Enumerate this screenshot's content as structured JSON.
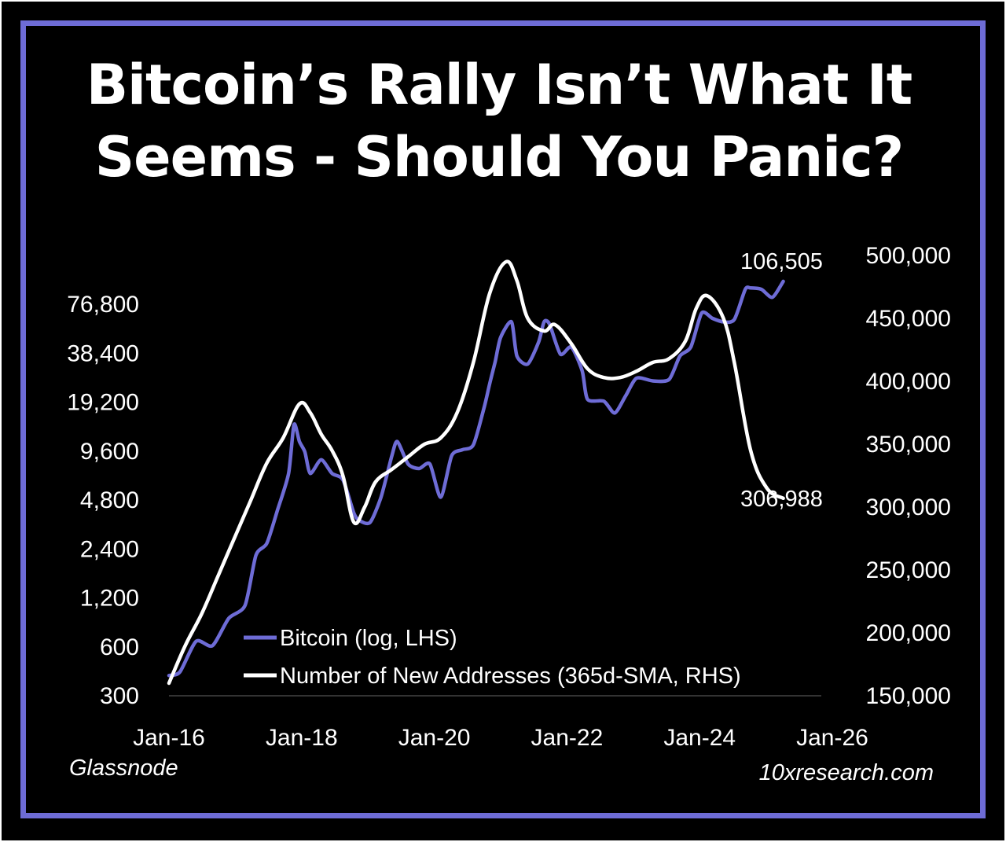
{
  "title": {
    "line1": "Bitcoin’s Rally Isn’t What It",
    "line2": "Seems - Should You Panic?"
  },
  "colors": {
    "background": "#000000",
    "border": "#6e6cd6",
    "bitcoin_series": "#6e6cd6",
    "addresses_series": "#ffffff",
    "text": "#ffffff"
  },
  "source_left": "Glassnode",
  "source_right": "10xresearch.com",
  "chart_data": {
    "type": "line",
    "title": "Bitcoin’s Rally Isn’t What It Seems - Should You Panic?",
    "x_ticks": [
      "Jan-16",
      "Jan-18",
      "Jan-20",
      "Jan-22",
      "Jan-24",
      "Jan-26"
    ],
    "xlim": [
      "2016-01",
      "2026-01"
    ],
    "y_left": {
      "label": "",
      "scale": "log",
      "ticks": [
        "300",
        "600",
        "1,200",
        "2,400",
        "4,800",
        "9,600",
        "19,200",
        "38,400",
        "76,800"
      ],
      "ylim": [
        300,
        153600
      ]
    },
    "y_right": {
      "label": "",
      "scale": "linear",
      "ticks": [
        "150,000",
        "200,000",
        "250,000",
        "300,000",
        "350,000",
        "400,000",
        "450,000",
        "500,000"
      ],
      "ylim": [
        150000,
        500000
      ]
    },
    "legend": {
      "position": "bottom-center",
      "entries": [
        "Bitcoin (log, LHS)",
        "Number of New Addresses (365d-SMA, RHS)"
      ]
    },
    "annotations": {
      "bitcoin_last": "106,505",
      "addresses_last": "306,988"
    },
    "series": [
      {
        "name": "Bitcoin (log, LHS)",
        "axis": "left",
        "x": [
          "2016-01",
          "2016-03",
          "2016-06",
          "2016-09",
          "2016-12",
          "2017-03",
          "2017-05",
          "2017-07",
          "2017-09",
          "2017-11",
          "2017-12",
          "2018-01",
          "2018-02",
          "2018-03",
          "2018-05",
          "2018-07",
          "2018-09",
          "2018-11",
          "2018-12",
          "2019-02",
          "2019-04",
          "2019-06",
          "2019-07",
          "2019-09",
          "2019-11",
          "2020-01",
          "2020-03",
          "2020-05",
          "2020-07",
          "2020-09",
          "2020-11",
          "2020-12",
          "2021-01",
          "2021-02",
          "2021-04",
          "2021-05",
          "2021-07",
          "2021-09",
          "2021-10",
          "2021-11",
          "2022-01",
          "2022-03",
          "2022-05",
          "2022-06",
          "2022-09",
          "2022-11",
          "2023-01",
          "2023-03",
          "2023-06",
          "2023-09",
          "2023-11",
          "2024-01",
          "2024-03",
          "2024-05",
          "2024-07",
          "2024-09",
          "2024-11",
          "2024-12",
          "2025-02",
          "2025-04",
          "2025-06"
        ],
        "y": [
          400,
          420,
          650,
          610,
          900,
          1080,
          2200,
          2600,
          4200,
          7000,
          14000,
          11000,
          9500,
          7000,
          8500,
          7000,
          6400,
          4000,
          3600,
          3500,
          5000,
          9000,
          11000,
          8000,
          7500,
          8000,
          5000,
          9000,
          9800,
          10500,
          18000,
          25000,
          34000,
          48000,
          60000,
          37000,
          33000,
          45000,
          60000,
          58000,
          38000,
          42000,
          30000,
          20000,
          19500,
          16500,
          21000,
          27000,
          26000,
          26500,
          37000,
          42000,
          68000,
          63000,
          60000,
          62000,
          95000,
          97000,
          95000,
          85000,
          106505
        ]
      },
      {
        "name": "Number of New Addresses (365d-SMA, RHS)",
        "axis": "right",
        "x": [
          "2016-01",
          "2016-04",
          "2016-07",
          "2016-10",
          "2017-01",
          "2017-04",
          "2017-07",
          "2017-10",
          "2018-01",
          "2018-03",
          "2018-05",
          "2018-07",
          "2018-09",
          "2018-11",
          "2019-01",
          "2019-03",
          "2019-06",
          "2019-09",
          "2019-12",
          "2020-03",
          "2020-06",
          "2020-09",
          "2020-12",
          "2021-03",
          "2021-05",
          "2021-07",
          "2021-10",
          "2021-12",
          "2022-03",
          "2022-06",
          "2022-09",
          "2022-12",
          "2023-03",
          "2023-06",
          "2023-09",
          "2023-12",
          "2024-02",
          "2024-04",
          "2024-07",
          "2024-09",
          "2024-12",
          "2025-03",
          "2025-06"
        ],
        "y": [
          160000,
          190000,
          215000,
          245000,
          275000,
          305000,
          335000,
          355000,
          382000,
          375000,
          358000,
          345000,
          325000,
          288000,
          300000,
          320000,
          330000,
          340000,
          350000,
          355000,
          375000,
          415000,
          470000,
          495000,
          480000,
          450000,
          440000,
          445000,
          430000,
          410000,
          403000,
          403000,
          408000,
          415000,
          418000,
          432000,
          458000,
          468000,
          450000,
          415000,
          345000,
          315000,
          306988
        ]
      }
    ]
  }
}
